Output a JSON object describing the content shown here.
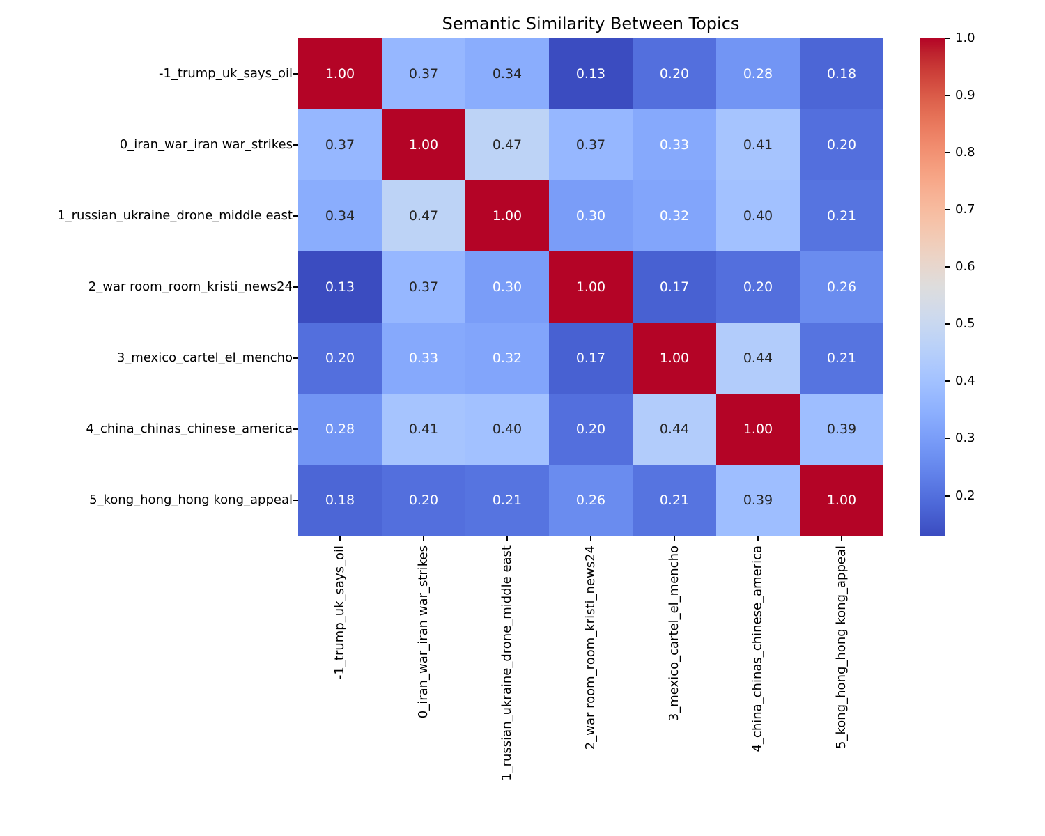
{
  "title": "Semantic Similarity Between Topics",
  "chart_data": {
    "type": "heatmap",
    "title": "Semantic Similarity Between Topics",
    "categories": [
      "-1_trump_uk_says_oil",
      "0_iran_war_iran war_strikes",
      "1_russian_ukraine_drone_middle east",
      "2_war room_room_kristi_news24",
      "3_mexico_cartel_el_mencho",
      "4_china_chinas_chinese_america",
      "5_kong_hong_hong kong_appeal"
    ],
    "matrix": [
      [
        1.0,
        0.37,
        0.34,
        0.13,
        0.2,
        0.28,
        0.18
      ],
      [
        0.37,
        1.0,
        0.47,
        0.37,
        0.33,
        0.41,
        0.2
      ],
      [
        0.34,
        0.47,
        1.0,
        0.3,
        0.32,
        0.4,
        0.21
      ],
      [
        0.13,
        0.37,
        0.3,
        1.0,
        0.17,
        0.2,
        0.26
      ],
      [
        0.2,
        0.33,
        0.32,
        0.17,
        1.0,
        0.44,
        0.21
      ],
      [
        0.28,
        0.41,
        0.4,
        0.2,
        0.44,
        1.0,
        0.39
      ],
      [
        0.18,
        0.2,
        0.21,
        0.26,
        0.21,
        0.39,
        1.0
      ]
    ],
    "vmin": 0.13,
    "vmax": 1.0,
    "colormap": {
      "name": "coolwarm",
      "stops": [
        "#3B4CC0",
        "#445ACC",
        "#4D68D8",
        "#5775E1",
        "#6282EA",
        "#6C8FF1",
        "#779AF7",
        "#82A5FB",
        "#8DB0FE",
        "#98B9FF",
        "#A3C2FF",
        "#AEC9FD",
        "#B8D0F9",
        "#C2D5F4",
        "#CCD9EE",
        "#D5DBE6",
        "#DDDDDD",
        "#E5D8D1",
        "#ECD3C5",
        "#F1CCB8",
        "#F5C4AB",
        "#F7BB9F",
        "#F7B194",
        "#F7A687",
        "#F49A7B",
        "#F18D6F",
        "#EC7F63",
        "#E57157",
        "#DD614C",
        "#D44E41",
        "#CA3B37",
        "#BE242E",
        "#B40426"
      ]
    },
    "colorbar_ticks": [
      1.0,
      0.9,
      0.8,
      0.7,
      0.6,
      0.5,
      0.4,
      0.3,
      0.2
    ],
    "annotation": {
      "format_decimals": 2,
      "color_on_light": "#262626",
      "color_on_dark": "#ffffff",
      "luminance_threshold": 0.408
    },
    "axis": {
      "tick_color": "#000000",
      "label_color": "#000000"
    },
    "grid": false,
    "legend_position": "right-colorbar"
  }
}
